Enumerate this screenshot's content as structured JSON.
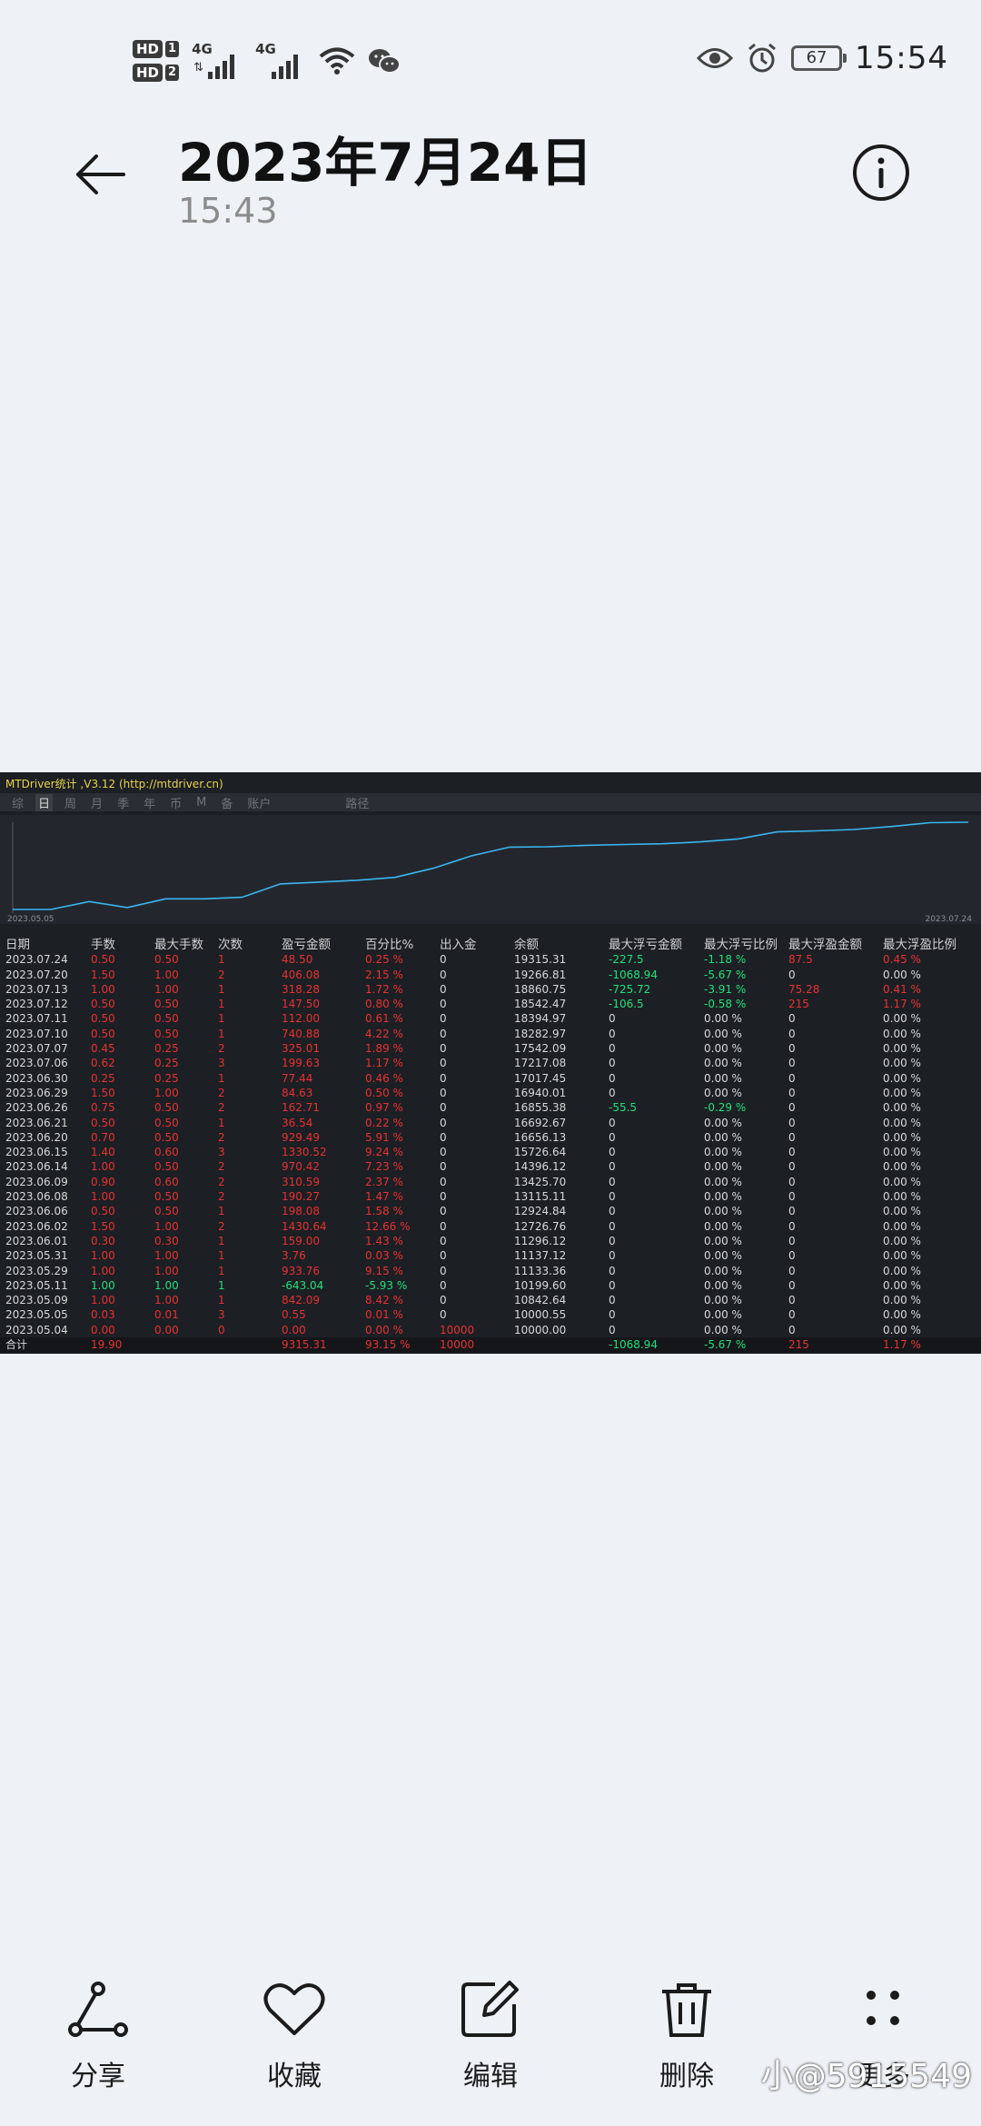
{
  "status": {
    "hd1": "HD",
    "sim1": "1",
    "hd2": "HD",
    "sim2": "2",
    "net1": "4G",
    "net2": "4G",
    "battery": "67",
    "time": "15:54"
  },
  "header": {
    "title": "2023年7月24日",
    "subtitle": "15:43"
  },
  "report": {
    "app_title": "MTDriver统计 ,V3.12 (http://mtdriver.cn)",
    "tabs": [
      "综",
      "日",
      "周",
      "月",
      "季",
      "年",
      "币",
      "M",
      "备",
      "账户",
      "",
      "路径"
    ],
    "active_tab": "日",
    "chart_start": "2023.05.05",
    "chart_end": "2023.07.24",
    "columns": [
      "日期",
      "手数",
      "最大手数",
      "次数",
      "盈亏金额",
      "百分比%",
      "出入金",
      "余额",
      "最大浮亏金额",
      "最大浮亏比例",
      "最大浮盈金额",
      "最大浮盈比例"
    ],
    "rows": [
      [
        "2023.07.24",
        "0.50",
        "0.50",
        "1",
        "48.50",
        "0.25 %",
        "0",
        "19315.31",
        "-227.5",
        "-1.18 %",
        "87.5",
        "0.45 %"
      ],
      [
        "2023.07.20",
        "1.50",
        "1.00",
        "2",
        "406.08",
        "2.15 %",
        "0",
        "19266.81",
        "-1068.94",
        "-5.67 %",
        "0",
        "0.00 %"
      ],
      [
        "2023.07.13",
        "1.00",
        "1.00",
        "1",
        "318.28",
        "1.72 %",
        "0",
        "18860.75",
        "-725.72",
        "-3.91 %",
        "75.28",
        "0.41 %"
      ],
      [
        "2023.07.12",
        "0.50",
        "0.50",
        "1",
        "147.50",
        "0.80 %",
        "0",
        "18542.47",
        "-106.5",
        "-0.58 %",
        "215",
        "1.17 %"
      ],
      [
        "2023.07.11",
        "0.50",
        "0.50",
        "1",
        "112.00",
        "0.61 %",
        "0",
        "18394.97",
        "0",
        "0.00 %",
        "0",
        "0.00 %"
      ],
      [
        "2023.07.10",
        "0.50",
        "0.50",
        "1",
        "740.88",
        "4.22 %",
        "0",
        "18282.97",
        "0",
        "0.00 %",
        "0",
        "0.00 %"
      ],
      [
        "2023.07.07",
        "0.45",
        "0.25",
        "2",
        "325.01",
        "1.89 %",
        "0",
        "17542.09",
        "0",
        "0.00 %",
        "0",
        "0.00 %"
      ],
      [
        "2023.07.06",
        "0.62",
        "0.25",
        "3",
        "199.63",
        "1.17 %",
        "0",
        "17217.08",
        "0",
        "0.00 %",
        "0",
        "0.00 %"
      ],
      [
        "2023.06.30",
        "0.25",
        "0.25",
        "1",
        "77.44",
        "0.46 %",
        "0",
        "17017.45",
        "0",
        "0.00 %",
        "0",
        "0.00 %"
      ],
      [
        "2023.06.29",
        "1.50",
        "1.00",
        "2",
        "84.63",
        "0.50 %",
        "0",
        "16940.01",
        "0",
        "0.00 %",
        "0",
        "0.00 %"
      ],
      [
        "2023.06.26",
        "0.75",
        "0.50",
        "2",
        "162.71",
        "0.97 %",
        "0",
        "16855.38",
        "-55.5",
        "-0.29 %",
        "0",
        "0.00 %"
      ],
      [
        "2023.06.21",
        "0.50",
        "0.50",
        "1",
        "36.54",
        "0.22 %",
        "0",
        "16692.67",
        "0",
        "0.00 %",
        "0",
        "0.00 %"
      ],
      [
        "2023.06.20",
        "0.70",
        "0.50",
        "2",
        "929.49",
        "5.91 %",
        "0",
        "16656.13",
        "0",
        "0.00 %",
        "0",
        "0.00 %"
      ],
      [
        "2023.06.15",
        "1.40",
        "0.60",
        "3",
        "1330.52",
        "9.24 %",
        "0",
        "15726.64",
        "0",
        "0.00 %",
        "0",
        "0.00 %"
      ],
      [
        "2023.06.14",
        "1.00",
        "0.50",
        "2",
        "970.42",
        "7.23 %",
        "0",
        "14396.12",
        "0",
        "0.00 %",
        "0",
        "0.00 %"
      ],
      [
        "2023.06.09",
        "0.90",
        "0.60",
        "2",
        "310.59",
        "2.37 %",
        "0",
        "13425.70",
        "0",
        "0.00 %",
        "0",
        "0.00 %"
      ],
      [
        "2023.06.08",
        "1.00",
        "0.50",
        "2",
        "190.27",
        "1.47 %",
        "0",
        "13115.11",
        "0",
        "0.00 %",
        "0",
        "0.00 %"
      ],
      [
        "2023.06.06",
        "0.50",
        "0.50",
        "1",
        "198.08",
        "1.58 %",
        "0",
        "12924.84",
        "0",
        "0.00 %",
        "0",
        "0.00 %"
      ],
      [
        "2023.06.02",
        "1.50",
        "1.00",
        "2",
        "1430.64",
        "12.66 %",
        "0",
        "12726.76",
        "0",
        "0.00 %",
        "0",
        "0.00 %"
      ],
      [
        "2023.06.01",
        "0.30",
        "0.30",
        "1",
        "159.00",
        "1.43 %",
        "0",
        "11296.12",
        "0",
        "0.00 %",
        "0",
        "0.00 %"
      ],
      [
        "2023.05.31",
        "1.00",
        "1.00",
        "1",
        "3.76",
        "0.03 %",
        "0",
        "11137.12",
        "0",
        "0.00 %",
        "0",
        "0.00 %"
      ],
      [
        "2023.05.29",
        "1.00",
        "1.00",
        "1",
        "933.76",
        "9.15 %",
        "0",
        "11133.36",
        "0",
        "0.00 %",
        "0",
        "0.00 %"
      ],
      [
        "2023.05.11",
        "1.00",
        "1.00",
        "1",
        "-643.04",
        "-5.93 %",
        "0",
        "10199.60",
        "0",
        "0.00 %",
        "0",
        "0.00 %"
      ],
      [
        "2023.05.09",
        "1.00",
        "1.00",
        "1",
        "842.09",
        "8.42 %",
        "0",
        "10842.64",
        "0",
        "0.00 %",
        "0",
        "0.00 %"
      ],
      [
        "2023.05.05",
        "0.03",
        "0.01",
        "3",
        "0.55",
        "0.01 %",
        "0",
        "10000.55",
        "0",
        "0.00 %",
        "0",
        "0.00 %"
      ],
      [
        "2023.05.04",
        "0.00",
        "0.00",
        "0",
        "0.00",
        "0.00 %",
        "10000",
        "10000.00",
        "0",
        "0.00 %",
        "0",
        "0.00 %"
      ]
    ],
    "total": [
      "合计",
      "19.90",
      "",
      "",
      "9315.31",
      "93.15 %",
      "10000",
      "",
      "-1068.94",
      "-5.67 %",
      "215",
      "1.17 %"
    ]
  },
  "colors": {
    "up": "#e63232",
    "down": "#21e07a",
    "line": "#3ab6f0"
  },
  "bottom": {
    "share": "分享",
    "favorite": "收藏",
    "edit": "编辑",
    "delete": "删除",
    "more": "更多"
  },
  "watermark": "小@5915549"
}
